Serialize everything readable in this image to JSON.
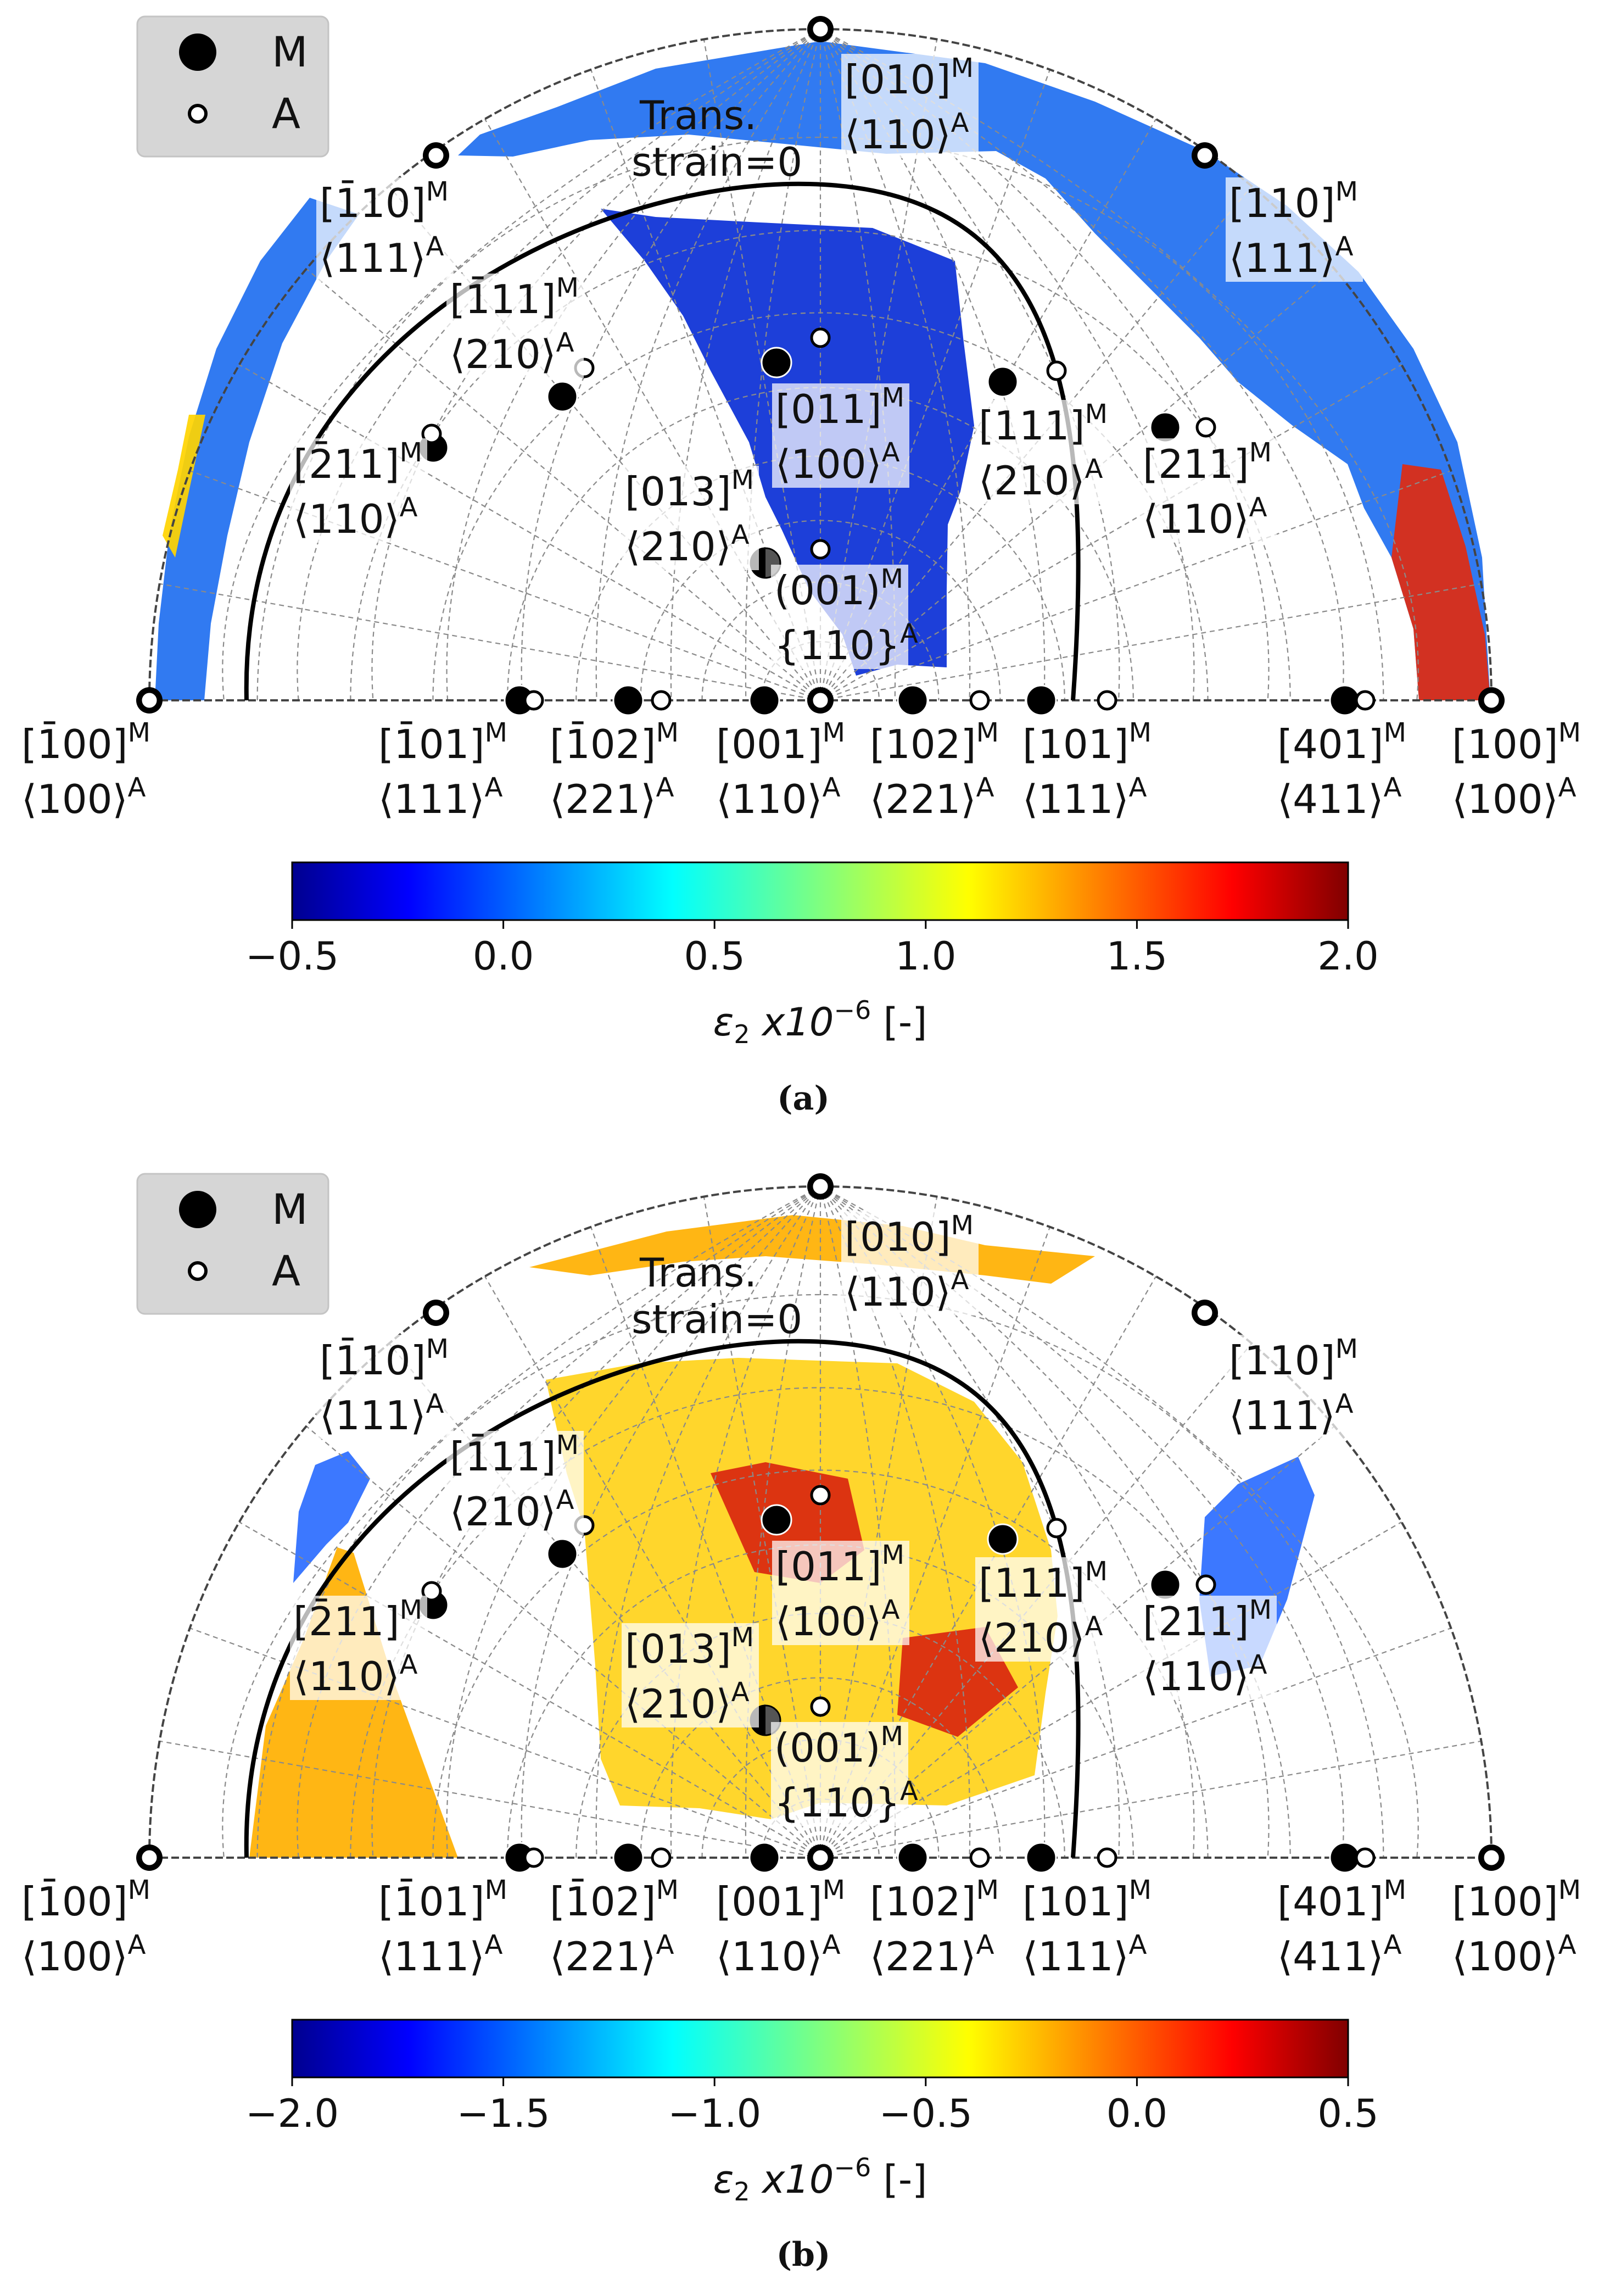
{
  "chart_data": [
    {
      "type": "heatmap",
      "caption": "(a)",
      "legend": {
        "position": "top-left",
        "entries": [
          {
            "marker": "filled",
            "label": "M"
          },
          {
            "marker": "open",
            "label": "A"
          }
        ]
      },
      "annotation": [
        "Trans.",
        "strain=0"
      ],
      "colorbar": {
        "label_pre": "ε",
        "label_sub": "2",
        "label_mid": " x10",
        "label_sup": "−6",
        "label_post": " [-]",
        "range": [
          -0.5,
          2.0
        ],
        "ticks": [
          "−0.5",
          "0.0",
          "0.5",
          "1.0",
          "1.5",
          "2.0"
        ],
        "colormap": "jet"
      },
      "color_tones": {
        "deep": "#0a2fd6",
        "mid": "#1f6ff0",
        "light": "#3aa0ff",
        "accent_a": "#ffd400",
        "accent_b": "#e02a10"
      },
      "directions": [
        {
          "m": "[1̄00]",
          "a": "⟨100⟩"
        },
        {
          "m": "[1̄01]",
          "a": "⟨111⟩"
        },
        {
          "m": "[1̄02]",
          "a": "⟨221⟩"
        },
        {
          "m": "[001]",
          "a": "⟨110⟩"
        },
        {
          "m": "[102]",
          "a": "⟨221⟩"
        },
        {
          "m": "[101]",
          "a": "⟨111⟩"
        },
        {
          "m": "[401]",
          "a": "⟨411⟩"
        },
        {
          "m": "[100]",
          "a": "⟨100⟩"
        },
        {
          "m": "[1̄10]",
          "a": "⟨111⟩"
        },
        {
          "m": "[010]",
          "a": "⟨110⟩"
        },
        {
          "m": "[110]",
          "a": "⟨111⟩"
        },
        {
          "m": "[1̄11]",
          "a": "⟨210⟩"
        },
        {
          "m": "[2̄11]",
          "a": "⟨110⟩"
        },
        {
          "m": "[011]",
          "a": "⟨100⟩"
        },
        {
          "m": "[111]",
          "a": "⟨210⟩"
        },
        {
          "m": "[211]",
          "a": "⟨110⟩"
        },
        {
          "m": "[013]",
          "a": "⟨210⟩"
        },
        {
          "m": "(001)",
          "a": "{110}"
        }
      ]
    },
    {
      "type": "heatmap",
      "caption": "(b)",
      "legend": {
        "position": "top-left",
        "entries": [
          {
            "marker": "filled",
            "label": "M"
          },
          {
            "marker": "open",
            "label": "A"
          }
        ]
      },
      "annotation": [
        "Trans.",
        "strain=0"
      ],
      "colorbar": {
        "label_pre": "ε",
        "label_sub": "2",
        "label_mid": " x10",
        "label_sup": "−6",
        "label_post": " [-]",
        "range": [
          -2.0,
          0.5
        ],
        "ticks": [
          "−2.0",
          "−1.5",
          "−1.0",
          "−0.5",
          "0.0",
          "0.5"
        ],
        "colormap": "jet"
      },
      "color_tones": {
        "deep": "#f08a10",
        "mid": "#ffb000",
        "light": "#ffd21a",
        "accent_a": "#2b6cff",
        "accent_b": "#d9260f"
      },
      "directions": [
        {
          "m": "[1̄00]",
          "a": "⟨100⟩"
        },
        {
          "m": "[1̄01]",
          "a": "⟨111⟩"
        },
        {
          "m": "[1̄02]",
          "a": "⟨221⟩"
        },
        {
          "m": "[001]",
          "a": "⟨110⟩"
        },
        {
          "m": "[102]",
          "a": "⟨221⟩"
        },
        {
          "m": "[101]",
          "a": "⟨111⟩"
        },
        {
          "m": "[401]",
          "a": "⟨411⟩"
        },
        {
          "m": "[100]",
          "a": "⟨100⟩"
        },
        {
          "m": "[1̄10]",
          "a": "⟨111⟩"
        },
        {
          "m": "[010]",
          "a": "⟨110⟩"
        },
        {
          "m": "[110]",
          "a": "⟨111⟩"
        },
        {
          "m": "[1̄11]",
          "a": "⟨210⟩"
        },
        {
          "m": "[2̄11]",
          "a": "⟨110⟩"
        },
        {
          "m": "[011]",
          "a": "⟨100⟩"
        },
        {
          "m": "[111]",
          "a": "⟨210⟩"
        },
        {
          "m": "[211]",
          "a": "⟨110⟩"
        },
        {
          "m": "[013]",
          "a": "⟨210⟩"
        },
        {
          "m": "(001)",
          "a": "{110}"
        }
      ]
    }
  ]
}
